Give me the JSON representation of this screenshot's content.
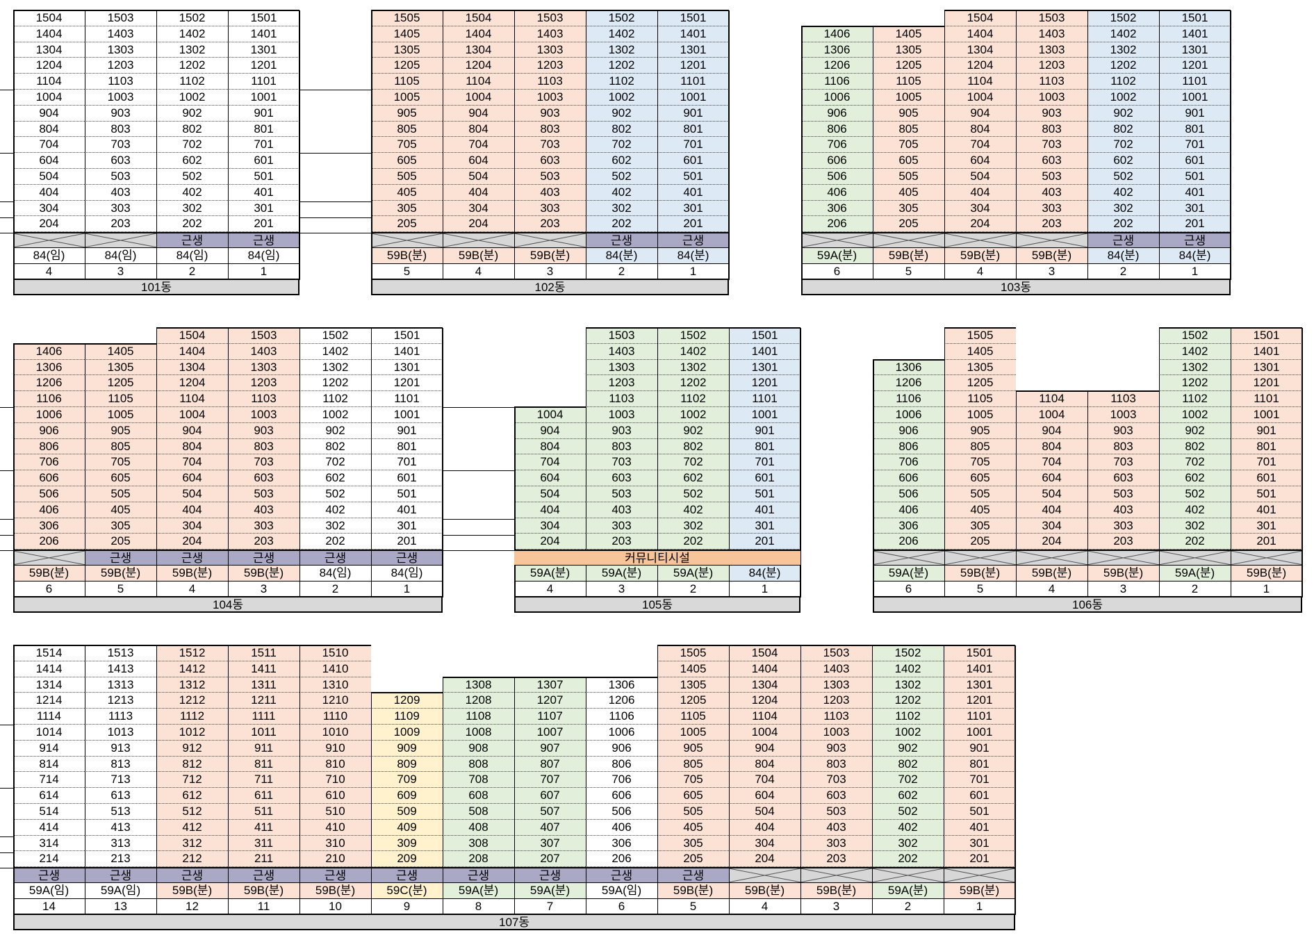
{
  "colors": {
    "pink": "#fbe2d5",
    "blue": "#dde9f5",
    "green": "#e2efda",
    "yellow": "#fff2cc",
    "white": "#ffffff",
    "gs": "#a9a9c6",
    "community": "#f8c49a",
    "footer": "#d9d9d9"
  },
  "buildings": [
    {
      "name": "101동",
      "cols": [
        {
          "line": "4",
          "type": "84(임)",
          "color": "white",
          "top": 15,
          "bottom": 2,
          "gs": "x"
        },
        {
          "line": "3",
          "type": "84(임)",
          "color": "white",
          "top": 15,
          "bottom": 2,
          "gs": "x"
        },
        {
          "line": "2",
          "type": "84(임)",
          "color": "white",
          "top": 15,
          "bottom": 2,
          "gs": "근생"
        },
        {
          "line": "1",
          "type": "84(임)",
          "color": "white",
          "top": 15,
          "bottom": 2,
          "gs": "근생"
        }
      ]
    },
    {
      "name": "102동",
      "cols": [
        {
          "line": "5",
          "type": "59B(분)",
          "color": "pink",
          "top": 15,
          "bottom": 2,
          "gs": "x"
        },
        {
          "line": "4",
          "type": "59B(분)",
          "color": "pink",
          "top": 15,
          "bottom": 2,
          "gs": "x"
        },
        {
          "line": "3",
          "type": "59B(분)",
          "color": "pink",
          "top": 15,
          "bottom": 2,
          "gs": "x"
        },
        {
          "line": "2",
          "type": "84(분)",
          "color": "blue",
          "top": 15,
          "bottom": 2,
          "gs": "근생"
        },
        {
          "line": "1",
          "type": "84(분)",
          "color": "blue",
          "top": 15,
          "bottom": 2,
          "gs": "근생"
        }
      ]
    },
    {
      "name": "103동",
      "cols": [
        {
          "line": "6",
          "type": "59A(분)",
          "color": "green",
          "top": 14,
          "bottom": 2,
          "gs": "x"
        },
        {
          "line": "5",
          "type": "59B(분)",
          "color": "pink",
          "top": 14,
          "bottom": 2,
          "gs": "x"
        },
        {
          "line": "4",
          "type": "59B(분)",
          "color": "pink",
          "top": 15,
          "bottom": 2,
          "gs": "x"
        },
        {
          "line": "3",
          "type": "59B(분)",
          "color": "pink",
          "top": 15,
          "bottom": 2,
          "gs": "x"
        },
        {
          "line": "2",
          "type": "84(분)",
          "color": "blue",
          "top": 15,
          "bottom": 2,
          "gs": "근생"
        },
        {
          "line": "1",
          "type": "84(분)",
          "color": "blue",
          "top": 15,
          "bottom": 2,
          "gs": "근생"
        }
      ]
    },
    {
      "name": "104동",
      "cols": [
        {
          "line": "6",
          "type": "59B(분)",
          "color": "pink",
          "top": 14,
          "bottom": 2,
          "gs": "x"
        },
        {
          "line": "5",
          "type": "59B(분)",
          "color": "pink",
          "top": 14,
          "bottom": 2,
          "gs": "근생"
        },
        {
          "line": "4",
          "type": "59B(분)",
          "color": "pink",
          "top": 15,
          "bottom": 2,
          "gs": "근생"
        },
        {
          "line": "3",
          "type": "59B(분)",
          "color": "pink",
          "top": 15,
          "bottom": 2,
          "gs": "근생"
        },
        {
          "line": "2",
          "type": "84(임)",
          "color": "white",
          "top": 15,
          "bottom": 2,
          "gs": "근생"
        },
        {
          "line": "1",
          "type": "84(임)",
          "color": "white",
          "top": 15,
          "bottom": 2,
          "gs": "근생"
        }
      ]
    },
    {
      "name": "105동",
      "community": "커뮤니티시설",
      "cols": [
        {
          "line": "4",
          "type": "59A(분)",
          "color": "green",
          "top": 10,
          "bottom": 2,
          "gs": "comm"
        },
        {
          "line": "3",
          "type": "59A(분)",
          "color": "green",
          "top": 15,
          "bottom": 2,
          "gs": "comm"
        },
        {
          "line": "2",
          "type": "59A(분)",
          "color": "green",
          "top": 15,
          "bottom": 2,
          "gs": "comm"
        },
        {
          "line": "1",
          "type": "84(분)",
          "color": "blue",
          "top": 15,
          "bottom": 2,
          "gs": "comm"
        }
      ]
    },
    {
      "name": "106동",
      "cols": [
        {
          "line": "6",
          "type": "59A(분)",
          "color": "green",
          "top": 13,
          "bottom": 2,
          "gs": "x"
        },
        {
          "line": "5",
          "type": "59B(분)",
          "color": "pink",
          "top": 15,
          "bottom": 2,
          "gs": "x"
        },
        {
          "line": "4",
          "type": "59B(분)",
          "color": "pink",
          "top": 11,
          "bottom": 2,
          "gs": "x"
        },
        {
          "line": "3",
          "type": "59B(분)",
          "color": "pink",
          "top": 11,
          "bottom": 2,
          "gs": "x"
        },
        {
          "line": "2",
          "type": "59A(분)",
          "color": "green",
          "top": 15,
          "bottom": 2,
          "gs": "x"
        },
        {
          "line": "1",
          "type": "59B(분)",
          "color": "pink",
          "top": 15,
          "bottom": 2,
          "gs": "x"
        }
      ]
    },
    {
      "name": "107동",
      "cols": [
        {
          "line": "14",
          "type": "59A(임)",
          "color": "white",
          "top": 15,
          "bottom": 2,
          "gs": "근생"
        },
        {
          "line": "13",
          "type": "59A(임)",
          "color": "white",
          "top": 15,
          "bottom": 2,
          "gs": "근생"
        },
        {
          "line": "12",
          "type": "59B(분)",
          "color": "pink",
          "top": 15,
          "bottom": 2,
          "gs": "근생"
        },
        {
          "line": "11",
          "type": "59B(분)",
          "color": "pink",
          "top": 15,
          "bottom": 2,
          "gs": "근생"
        },
        {
          "line": "10",
          "type": "59B(분)",
          "color": "pink",
          "top": 15,
          "bottom": 2,
          "gs": "근생"
        },
        {
          "line": "9",
          "type": "59C(분)",
          "color": "yellow",
          "top": 12,
          "bottom": 2,
          "gs": "근생"
        },
        {
          "line": "8",
          "type": "59A(분)",
          "color": "green",
          "top": 13,
          "bottom": 2,
          "gs": "근생"
        },
        {
          "line": "7",
          "type": "59A(분)",
          "color": "green",
          "top": 13,
          "bottom": 2,
          "gs": "근생"
        },
        {
          "line": "6",
          "type": "59A(임)",
          "color": "white",
          "top": 13,
          "bottom": 2,
          "gs": "근생"
        },
        {
          "line": "5",
          "type": "59B(분)",
          "color": "pink",
          "top": 15,
          "bottom": 2,
          "gs": "근생"
        },
        {
          "line": "4",
          "type": "59B(분)",
          "color": "pink",
          "top": 15,
          "bottom": 2,
          "gs": "x"
        },
        {
          "line": "3",
          "type": "59B(분)",
          "color": "pink",
          "top": 15,
          "bottom": 2,
          "gs": "x"
        },
        {
          "line": "2",
          "type": "59A(분)",
          "color": "green",
          "top": 15,
          "bottom": 2,
          "gs": "x"
        },
        {
          "line": "1",
          "type": "59B(분)",
          "color": "pink",
          "top": 15,
          "bottom": 2,
          "gs": "x"
        }
      ]
    }
  ]
}
